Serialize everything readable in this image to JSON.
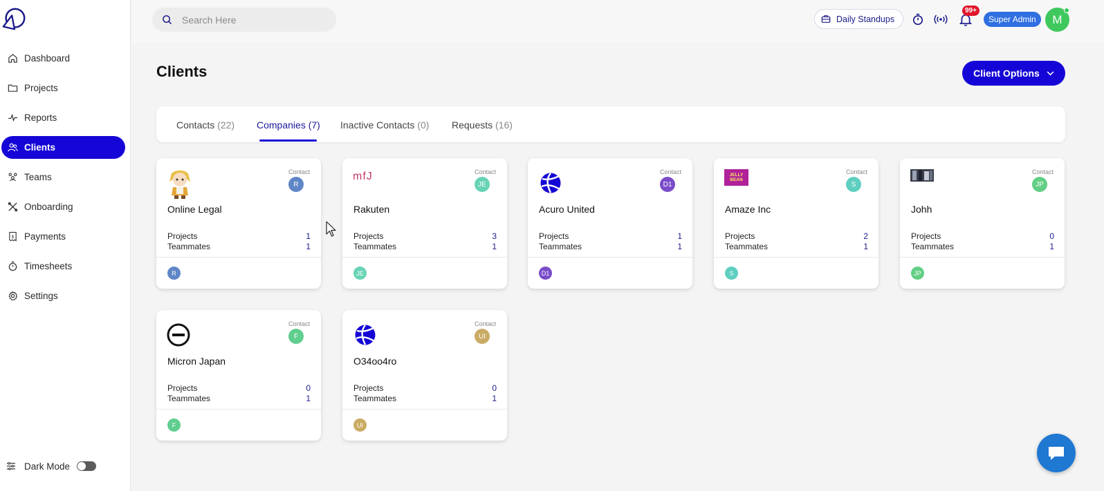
{
  "sidebar": {
    "items": [
      {
        "label": "Dashboard",
        "icon": "home-icon",
        "name": "dashboard"
      },
      {
        "label": "Projects",
        "icon": "folder-icon",
        "name": "projects"
      },
      {
        "label": "Reports",
        "icon": "activity-icon",
        "name": "reports"
      },
      {
        "label": "Clients",
        "icon": "users-icon",
        "name": "clients",
        "active": true
      },
      {
        "label": "Teams",
        "icon": "team-icon",
        "name": "teams"
      },
      {
        "label": "Onboarding",
        "icon": "tools-icon",
        "name": "onboarding"
      },
      {
        "label": "Payments",
        "icon": "receipt-icon",
        "name": "payments"
      },
      {
        "label": "Timesheets",
        "icon": "stopwatch-icon",
        "name": "timesheets"
      },
      {
        "label": "Settings",
        "icon": "gear-icon",
        "name": "settings"
      }
    ],
    "dark_mode_label": "Dark Mode"
  },
  "header": {
    "search_placeholder": "Search Here",
    "standups_label": "Daily Standups",
    "notification_badge": "99+",
    "role": "Super Admin",
    "avatar_initial": "M"
  },
  "page": {
    "title": "Clients",
    "client_options_label": "Client Options"
  },
  "tabs": [
    {
      "label": "Contacts",
      "count": "(22)"
    },
    {
      "label": "Companies",
      "count": "(7)",
      "active": true
    },
    {
      "label": "Inactive Contacts",
      "count": "(0)"
    },
    {
      "label": "Requests",
      "count": "(16)"
    }
  ],
  "labels": {
    "contact": "Contact",
    "projects": "Projects",
    "teammates": "Teammates"
  },
  "companies": [
    {
      "name": "Online Legal",
      "contact_initials": "R",
      "color": "#5f86c6",
      "projects": "1",
      "teammates": "1",
      "logo": "chibi-character-logo"
    },
    {
      "name": "Rakuten",
      "contact_initials": "JE",
      "color": "#67d3b5",
      "projects": "3",
      "teammates": "1",
      "logo": "mfj-logo",
      "logo_text": "mfJ"
    },
    {
      "name": "Acuro United",
      "contact_initials": "D1",
      "color": "#7a4cc9",
      "projects": "1",
      "teammates": "1",
      "logo": "volleyball-logo"
    },
    {
      "name": "Amaze Inc",
      "contact_initials": "S",
      "color": "#5ecfc0",
      "projects": "2",
      "teammates": "1",
      "logo": "jelly-bean-logo",
      "logo_text": "JELLY BEAN"
    },
    {
      "name": "Johh",
      "contact_initials": "JP",
      "color": "#62cf84",
      "projects": "0",
      "teammates": "1",
      "logo": "photo-thumbnail-logo"
    },
    {
      "name": "Micron Japan",
      "contact_initials": "F",
      "color": "#5fce8e",
      "projects": "0",
      "teammates": "1",
      "logo": "ring-logo"
    },
    {
      "name": "O34oo4ro",
      "contact_initials": "UI",
      "color": "#c9ab63",
      "projects": "0",
      "teammates": "1",
      "logo": "volleyball-logo"
    }
  ]
}
